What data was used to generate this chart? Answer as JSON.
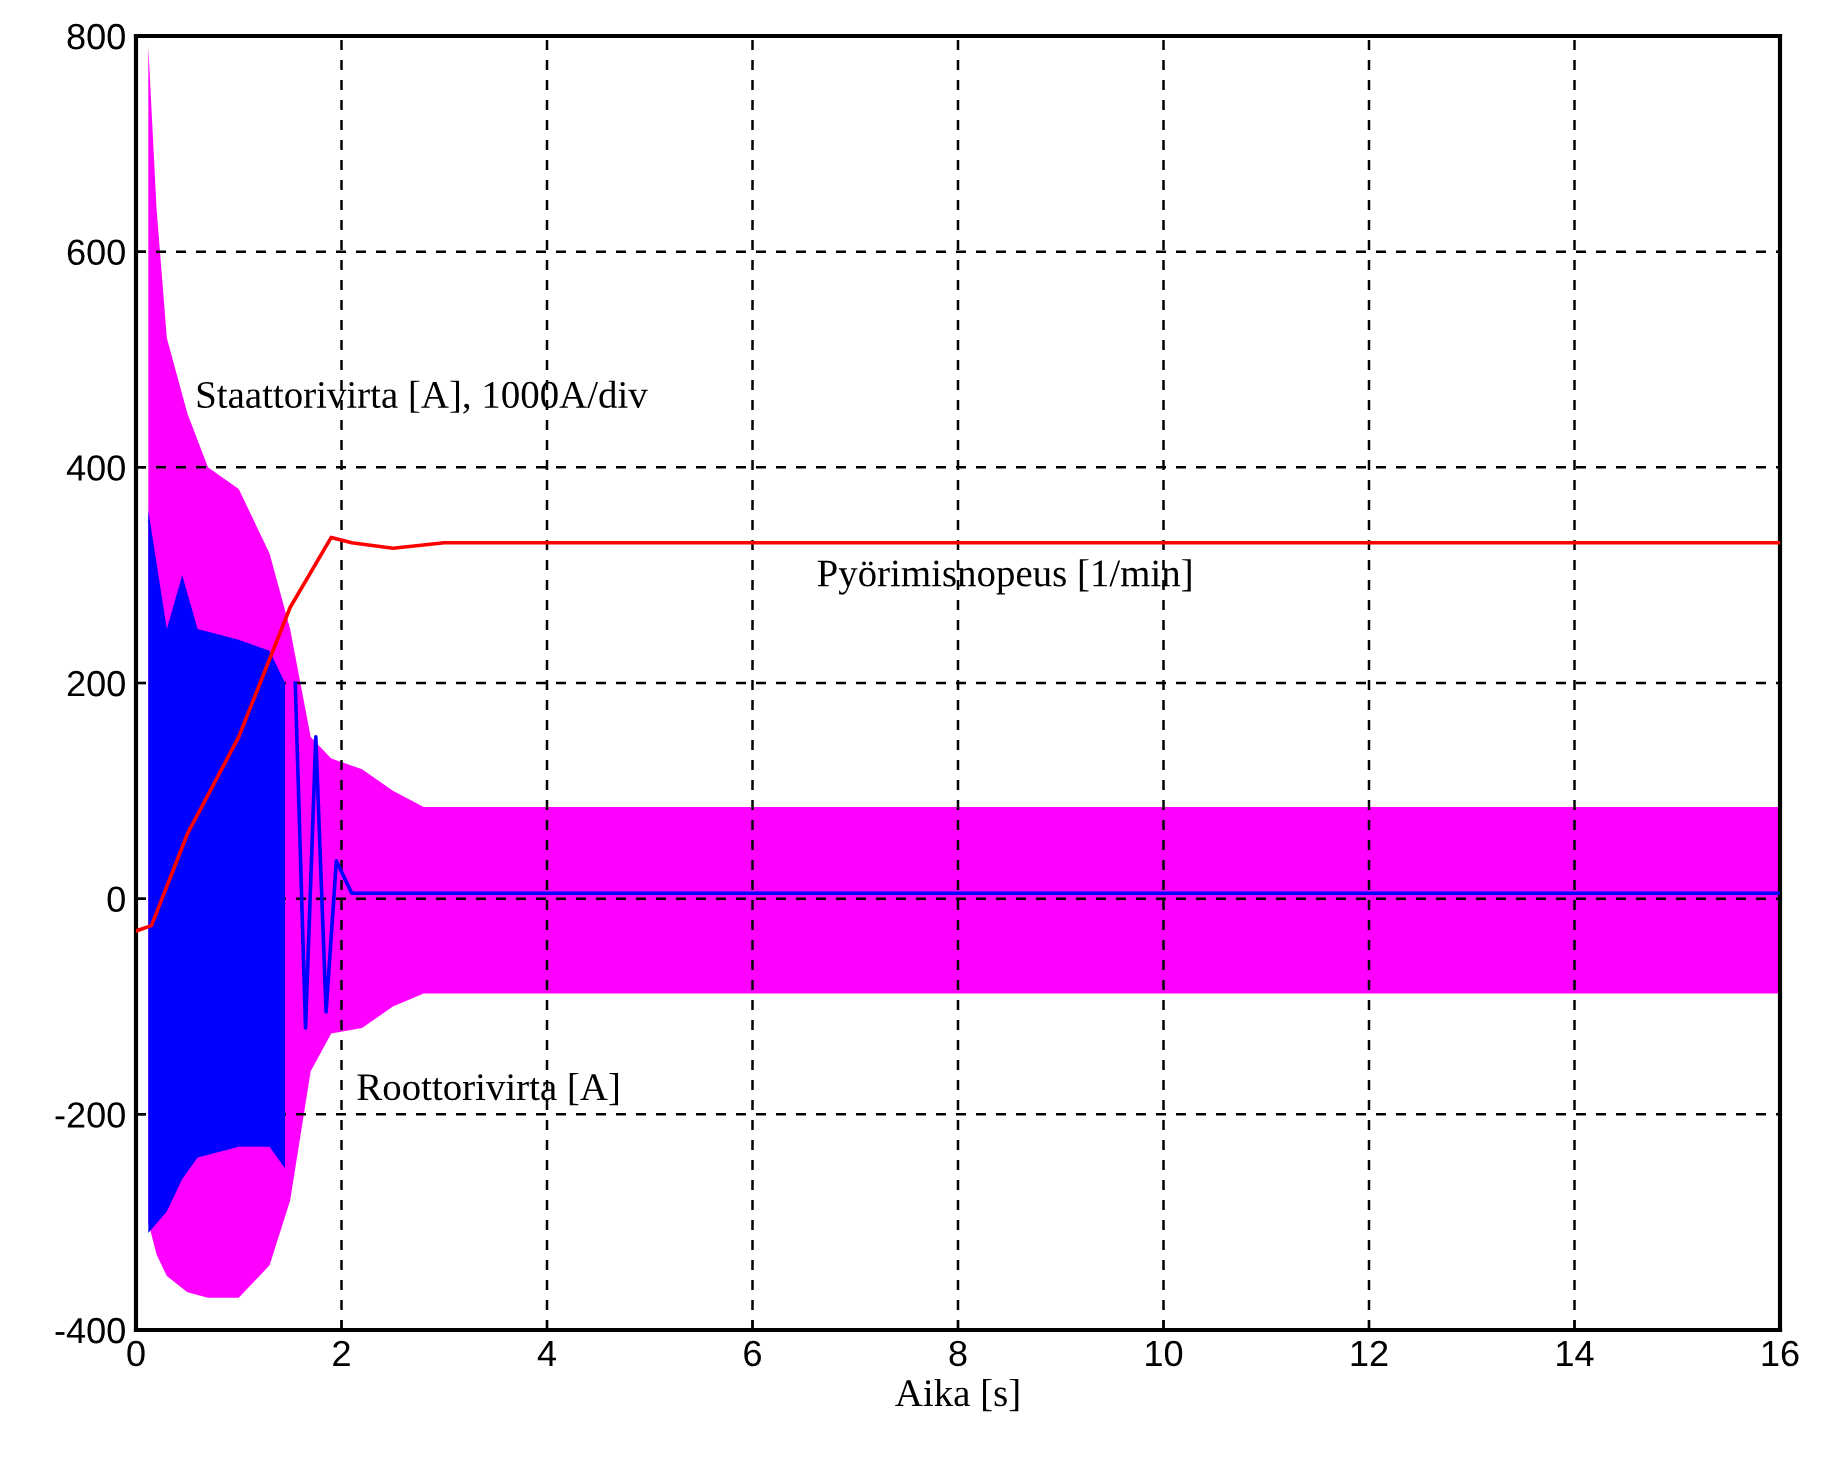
{
  "chart_data": {
    "type": "line",
    "xlabel": "Aika [s]",
    "xlim": [
      0,
      16
    ],
    "xticks": [
      0,
      2,
      4,
      6,
      8,
      10,
      12,
      14,
      16
    ],
    "ylim": [
      -400,
      800
    ],
    "yticks": [
      -400,
      -200,
      0,
      200,
      400,
      600,
      800
    ],
    "grid": true,
    "line_style": "solid",
    "marker": "none",
    "series": [
      {
        "color": "#ff00ff",
        "x": [
          0.12,
          0.2,
          0.3,
          0.5,
          0.7,
          1.0,
          1.3,
          1.5,
          1.7,
          1.9,
          2.2,
          2.5,
          2.8,
          16
        ],
        "values": [
          null,
          null,
          null,
          null,
          null,
          null,
          null,
          null,
          null,
          null,
          null,
          null,
          null,
          null
        ],
        "upper": [
          790,
          640,
          520,
          450,
          400,
          380,
          320,
          250,
          150,
          130,
          120,
          100,
          85,
          85
        ],
        "lower": [
          -300,
          -330,
          -350,
          -365,
          -370,
          -370,
          -340,
          -280,
          -160,
          -125,
          -120,
          -100,
          -88,
          -88
        ]
      },
      {
        "color": "#0000ff",
        "x": [
          0.12,
          0.3,
          0.45,
          0.6,
          1.0,
          1.3,
          1.45,
          1.55,
          1.65,
          1.75,
          1.85,
          1.95,
          2.1,
          16
        ],
        "values": [
          null,
          null,
          null,
          null,
          null,
          null,
          null,
          200,
          -120,
          150,
          -105,
          35,
          5,
          5
        ],
        "upper": [
          360,
          250,
          300,
          250,
          240,
          230,
          200,
          null,
          null,
          null,
          null,
          null,
          null,
          null
        ],
        "lower": [
          -310,
          -290,
          -260,
          -240,
          -230,
          -230,
          -250,
          null,
          null,
          null,
          null,
          null,
          null,
          null
        ]
      },
      {
        "color": "#ff0000",
        "x": [
          0,
          0.15,
          0.5,
          1.0,
          1.5,
          1.9,
          2.1,
          2.5,
          3.0,
          16
        ],
        "values": [
          -30,
          -25,
          60,
          150,
          270,
          335,
          330,
          325,
          330,
          330
        ]
      }
    ],
    "annotations": [
      "Staattorivirta [A], 1000A/div",
      "Pyörimisnopeus [1/min]",
      "Roottorivirta [A]"
    ]
  }
}
